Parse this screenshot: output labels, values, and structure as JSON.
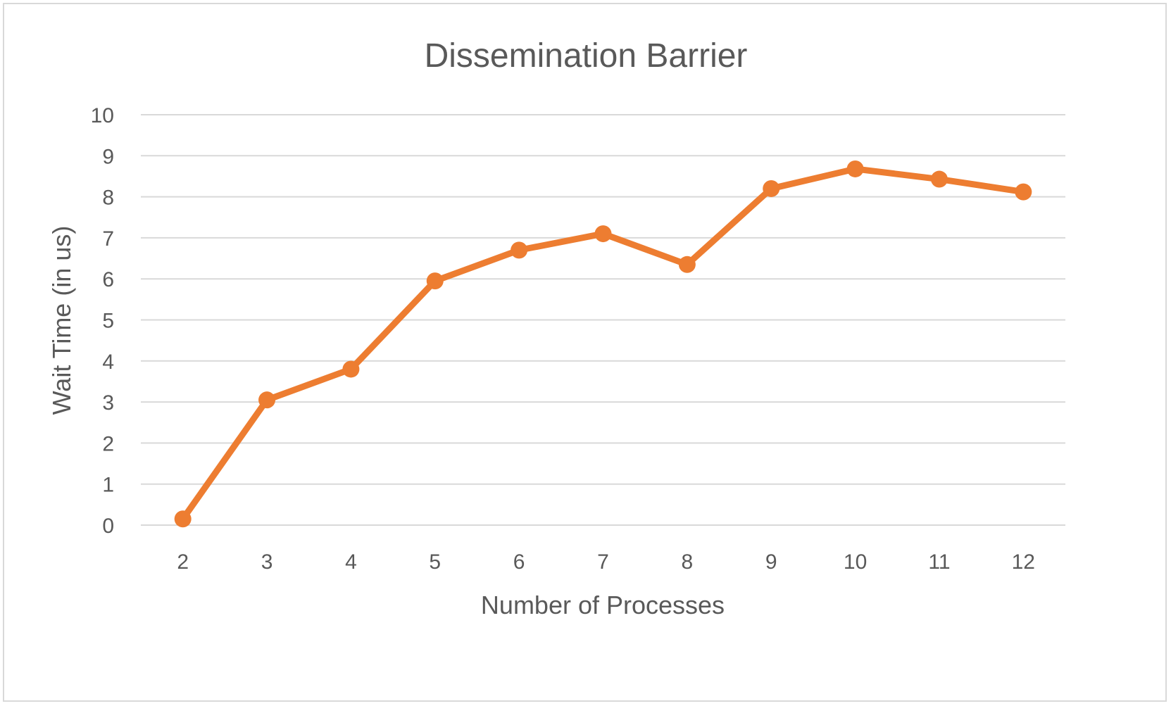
{
  "chart_data": {
    "type": "line",
    "title": "Dissemination Barrier",
    "xlabel": "Number of Processes",
    "ylabel": "Wait Time (in us)",
    "x": [
      2,
      3,
      4,
      5,
      6,
      7,
      8,
      9,
      10,
      11,
      12
    ],
    "series": [
      {
        "values": [
          0.15,
          3.05,
          3.8,
          5.95,
          6.7,
          7.1,
          6.35,
          8.2,
          8.68,
          8.43,
          8.12
        ],
        "color": "#ED7D31"
      }
    ],
    "ylim": [
      0,
      10
    ],
    "yticks": [
      0,
      1,
      2,
      3,
      4,
      5,
      6,
      7,
      8,
      9,
      10
    ],
    "grid": true,
    "gridColor": "#d9d9d9",
    "legend": "none"
  }
}
